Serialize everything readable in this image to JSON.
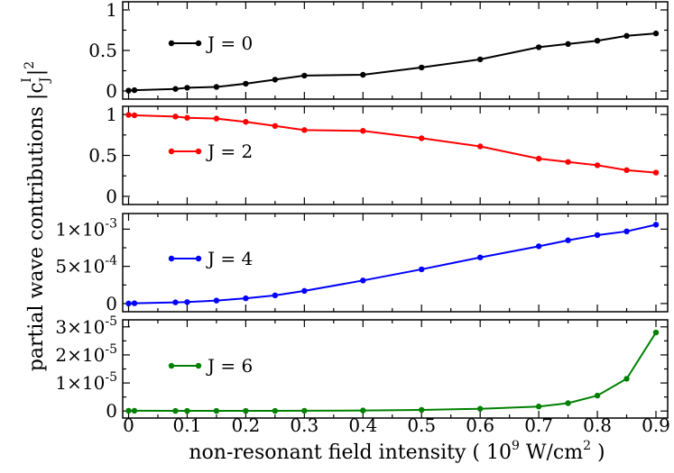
{
  "figure": {
    "xlabel_main": "non-resonant field intensity ( 10",
    "xlabel_sup": "9",
    "xlabel_unit": " W/cm",
    "xlabel_unit_sup": "2",
    "xlabel_end": " )",
    "ylabel_main": "partial wave contributions |c",
    "ylabel_sub": "J",
    "ylabel_sup1": "I",
    "ylabel_bar": "|",
    "ylabel_sup2": "2",
    "x_tick_labels": [
      "0",
      "0.1",
      "0.2",
      "0.3",
      "0.4",
      "0.5",
      "0.6",
      "0.7",
      "0.8",
      "0.9"
    ]
  },
  "chart_data": [
    {
      "type": "line",
      "series_name": "J = 0",
      "color": "#000000",
      "x": [
        0,
        0.01,
        0.08,
        0.1,
        0.15,
        0.2,
        0.25,
        0.3,
        0.4,
        0.5,
        0.6,
        0.7,
        0.75,
        0.8,
        0.85,
        0.9
      ],
      "y": [
        0.005,
        0.01,
        0.025,
        0.04,
        0.05,
        0.09,
        0.14,
        0.19,
        0.2,
        0.29,
        0.39,
        0.54,
        0.58,
        0.62,
        0.68,
        0.71
      ],
      "xlim": [
        -0.01,
        0.92
      ],
      "ylim": [
        -0.1,
        1.1
      ],
      "y_ticks": [
        0,
        0.5,
        1
      ],
      "y_tick_labels": [
        "0",
        "0.5",
        "1"
      ]
    },
    {
      "type": "line",
      "series_name": "J = 2",
      "color": "#ff0000",
      "x": [
        0,
        0.01,
        0.08,
        0.1,
        0.15,
        0.2,
        0.25,
        0.3,
        0.4,
        0.5,
        0.6,
        0.7,
        0.75,
        0.8,
        0.85,
        0.9
      ],
      "y": [
        0.995,
        0.99,
        0.975,
        0.96,
        0.95,
        0.91,
        0.86,
        0.81,
        0.8,
        0.71,
        0.61,
        0.46,
        0.42,
        0.38,
        0.32,
        0.29
      ],
      "xlim": [
        -0.01,
        0.92
      ],
      "ylim": [
        -0.1,
        1.1
      ],
      "y_ticks": [
        0,
        0.5,
        1
      ],
      "y_tick_labels": [
        "0",
        "0.5",
        "1"
      ]
    },
    {
      "type": "line",
      "series_name": "J = 4",
      "color": "#0000ff",
      "x": [
        0,
        0.01,
        0.08,
        0.1,
        0.15,
        0.2,
        0.25,
        0.3,
        0.4,
        0.5,
        0.6,
        0.7,
        0.75,
        0.8,
        0.85,
        0.9
      ],
      "y": [
        1e-06,
        4e-06,
        1.6e-05,
        2e-05,
        4e-05,
        7e-05,
        0.00011,
        0.00017,
        0.00031,
        0.00046,
        0.00062,
        0.00077,
        0.00085,
        0.00092,
        0.00097,
        0.00106
      ],
      "xlim": [
        -0.01,
        0.92
      ],
      "ylim": [
        -0.00011,
        0.00121
      ],
      "y_ticks": [
        0,
        0.0005,
        0.001
      ],
      "y_tick_labels": [
        {
          "base": "0",
          "exp": ""
        },
        {
          "base": "5×10",
          "exp": "-4"
        },
        {
          "base": "1×10",
          "exp": "-3"
        }
      ]
    },
    {
      "type": "line",
      "series_name": "J = 6",
      "color": "#008000",
      "x": [
        0,
        0.01,
        0.08,
        0.1,
        0.15,
        0.2,
        0.25,
        0.3,
        0.4,
        0.5,
        0.6,
        0.7,
        0.75,
        0.8,
        0.85,
        0.9
      ],
      "y": [
        1e-07,
        1e-07,
        5e-08,
        5e-08,
        5e-08,
        5e-08,
        5e-08,
        1e-07,
        2e-07,
        4e-07,
        8e-07,
        1.6e-06,
        2.8e-06,
        5.5e-06,
        1.15e-05,
        2.8e-05
      ],
      "xlim": [
        -0.01,
        0.92
      ],
      "ylim": [
        -2.5e-06,
        3.25e-05
      ],
      "y_ticks": [
        0,
        1e-05,
        2e-05,
        3e-05
      ],
      "y_tick_labels": [
        {
          "base": "0",
          "exp": ""
        },
        {
          "base": "1×10",
          "exp": "-5"
        },
        {
          "base": "2×10",
          "exp": "-5"
        },
        {
          "base": "3×10",
          "exp": "-5"
        }
      ]
    }
  ]
}
